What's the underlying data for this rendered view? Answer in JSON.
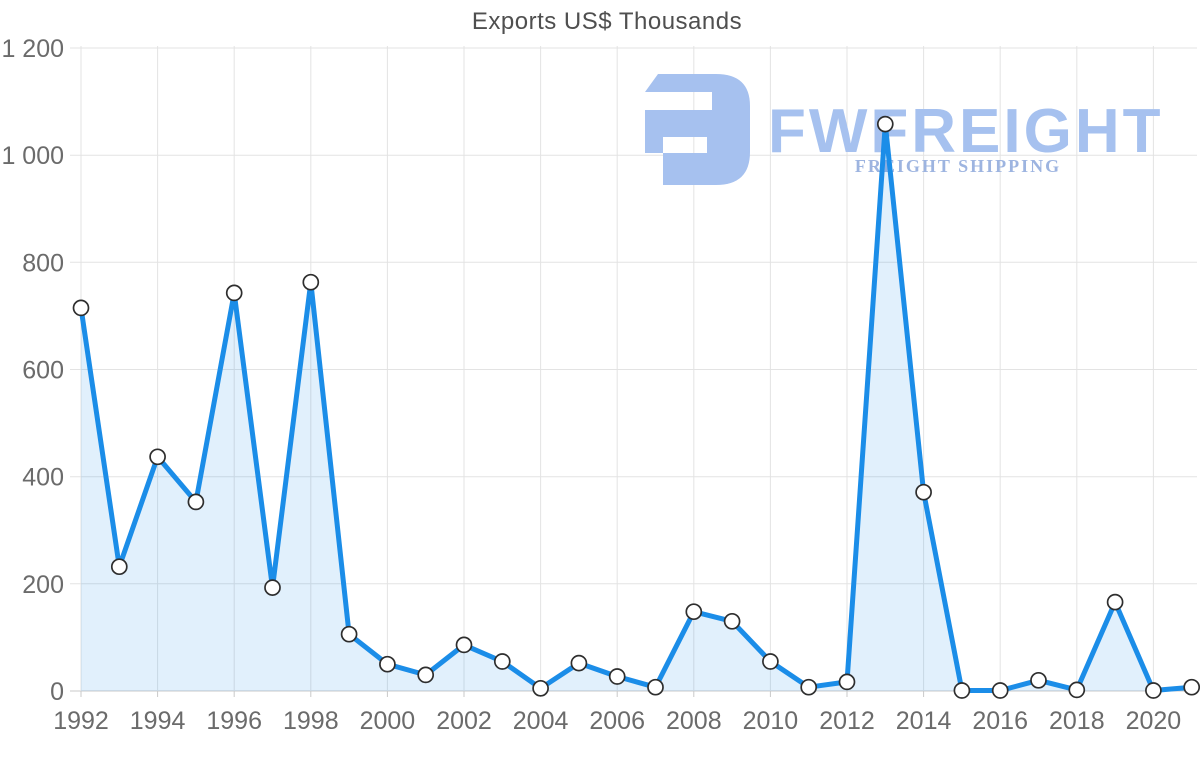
{
  "page": {
    "background": "#ffffff"
  },
  "chart_data": {
    "type": "area",
    "title": "Exports US$ Thousands",
    "xlabel": "",
    "ylabel": "",
    "xlim": [
      1992,
      2021
    ],
    "ylim": [
      0,
      1200
    ],
    "grid": true,
    "legend": false,
    "xticks": [
      1992,
      1994,
      1996,
      1998,
      2000,
      2002,
      2004,
      2006,
      2008,
      2010,
      2012,
      2014,
      2016,
      2018,
      2020
    ],
    "yticks": {
      "values": [
        0,
        200,
        400,
        600,
        800,
        1000,
        1200
      ],
      "labels": [
        "0",
        "200",
        "400",
        "600",
        "800",
        "1 000",
        "1 200"
      ]
    },
    "series": [
      {
        "name": "Exports US$ Thousands",
        "x": [
          1992,
          1993,
          1994,
          1995,
          1996,
          1997,
          1998,
          1999,
          2000,
          2001,
          2002,
          2003,
          2004,
          2005,
          2006,
          2007,
          2008,
          2009,
          2010,
          2011,
          2012,
          2013,
          2014,
          2015,
          2016,
          2017,
          2018,
          2019,
          2020,
          2021
        ],
        "values": [
          715,
          232,
          437,
          353,
          743,
          193,
          763,
          106,
          50,
          30,
          86,
          55,
          5,
          52,
          27,
          7,
          148,
          130,
          55,
          7,
          17,
          1058,
          371,
          1,
          1,
          20,
          2,
          166,
          1,
          7
        ]
      }
    ],
    "colors": {
      "line": "#1b8de8",
      "area_fill": "rgba(27,141,232,0.13)",
      "marker_fill": "#ffffff",
      "marker_stroke": "#2e2e2e",
      "grid": "#e3e3e3",
      "axis": "#c9c9c9",
      "tick_label": "#6b6b6b",
      "title": "#4f4f4f"
    }
  },
  "watermark": {
    "brand": "FWFREIGHT",
    "subtitle": "FREIGHT SHIPPING",
    "logo_icon": "fwfreight-logo",
    "color": "#a6c1ef",
    "subtitle_color": "#9db4e0"
  }
}
